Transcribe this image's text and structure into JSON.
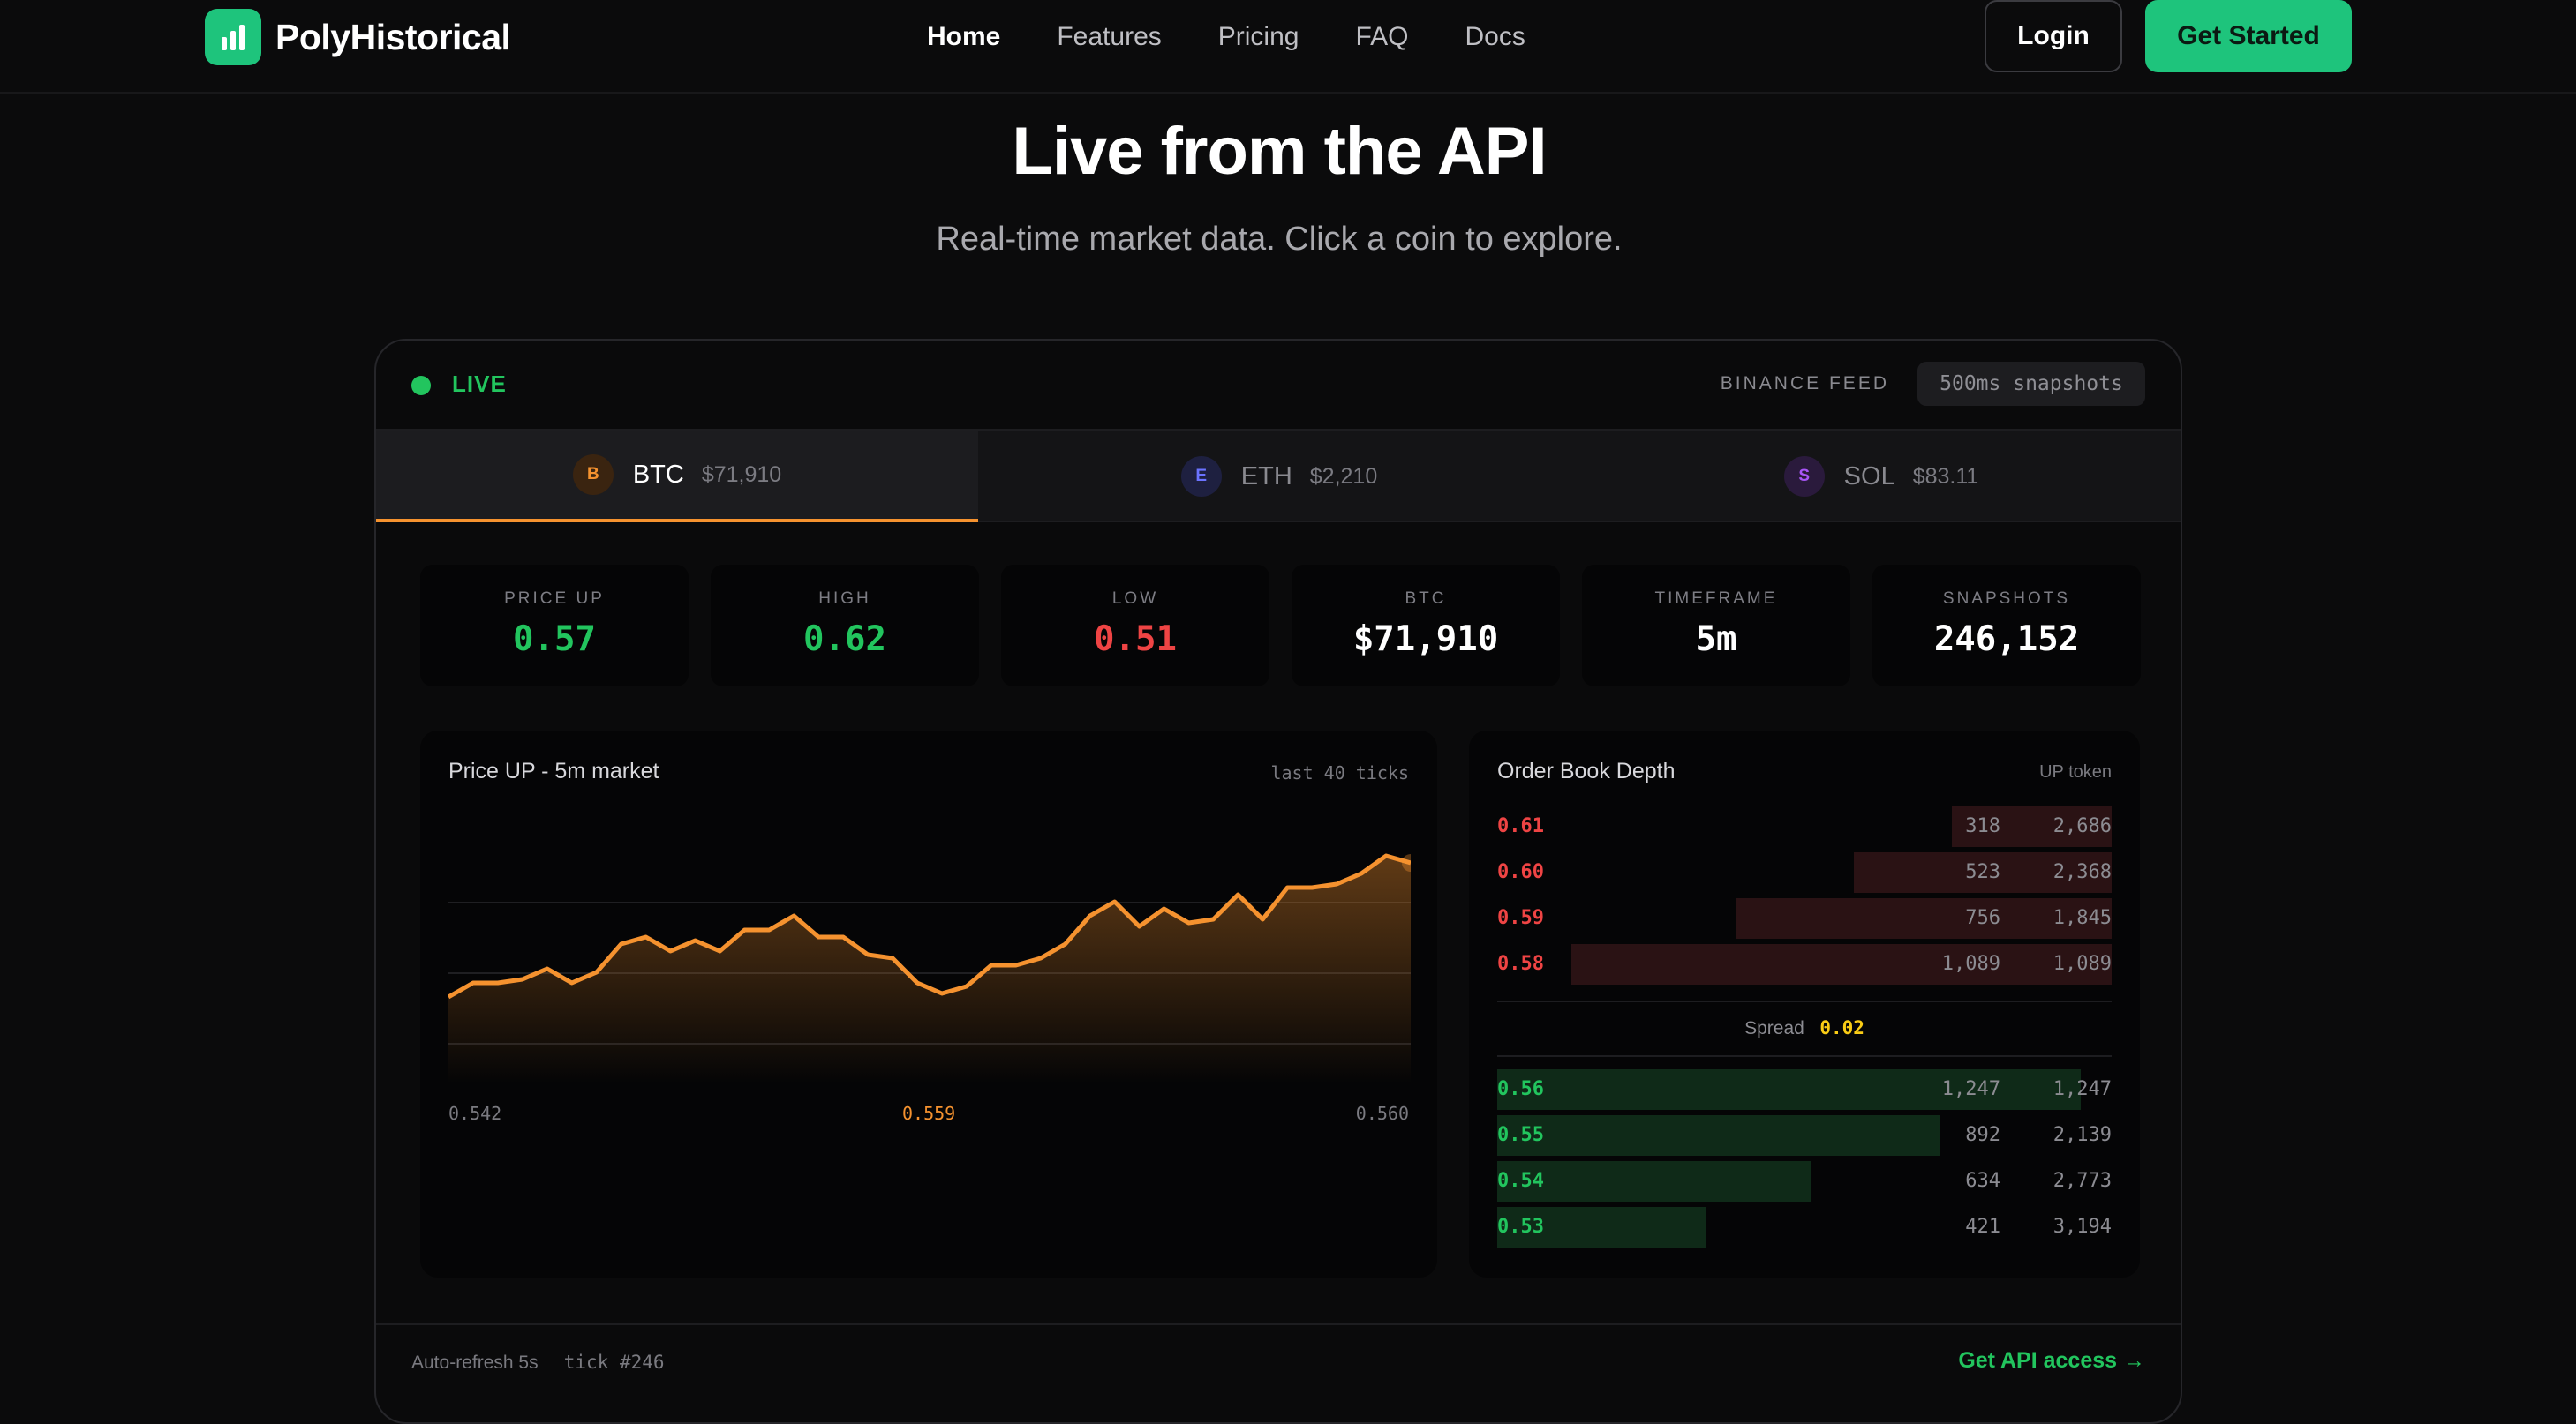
{
  "nav": {
    "brand": "PolyHistorical",
    "links": [
      {
        "label": "Home"
      },
      {
        "label": "Features"
      },
      {
        "label": "Pricing"
      },
      {
        "label": "FAQ"
      },
      {
        "label": "Docs"
      }
    ],
    "login_label": "Login",
    "cta_label": "Get Started"
  },
  "hero": {
    "title": "Live from the API",
    "subtitle": "Real-time market data. Click a coin to explore."
  },
  "card": {
    "live_label": "LIVE",
    "feed_label": "BINANCE FEED",
    "feed_pill": "500ms snapshots",
    "tabs": [
      {
        "badge": "B",
        "symbol": "BTC",
        "price": "$71,910",
        "color": "#f5922f"
      },
      {
        "badge": "E",
        "symbol": "ETH",
        "price": "$2,210",
        "color": "#6b73ff"
      },
      {
        "badge": "S",
        "symbol": "SOL",
        "price": "$83.11",
        "color": "#a855f7"
      }
    ],
    "stats": [
      {
        "label": "PRICE UP",
        "value": "0.57",
        "color": "#22c55e"
      },
      {
        "label": "HIGH",
        "value": "0.62",
        "color": "#22c55e"
      },
      {
        "label": "LOW",
        "value": "0.51",
        "color": "#ef4444"
      },
      {
        "label": "BTC",
        "value": "$71,910",
        "color": "#ffffff"
      },
      {
        "label": "TIMEFRAME",
        "value": "5m",
        "color": "#ffffff"
      },
      {
        "label": "SNAPSHOTS",
        "value": "246,152",
        "color": "#ffffff"
      }
    ],
    "chart_panel": {
      "title": "Price UP - 5m market",
      "note": "last 40 ticks",
      "axis_left": "0.542",
      "axis_mid": "0.559",
      "axis_right": "0.560"
    },
    "orderbook": {
      "title": "Order Book Depth",
      "note": "UP token",
      "spread_label": "Spread",
      "spread_value": "0.02",
      "asks": [
        {
          "price": "0.61",
          "size": "318",
          "total": "2,686",
          "depth": 0.26
        },
        {
          "price": "0.60",
          "size": "523",
          "total": "2,368",
          "depth": 0.42
        },
        {
          "price": "0.59",
          "size": "756",
          "total": "1,845",
          "depth": 0.61
        },
        {
          "price": "0.58",
          "size": "1,089",
          "total": "1,089",
          "depth": 0.88
        }
      ],
      "bids": [
        {
          "price": "0.56",
          "size": "1,247",
          "total": "1,247",
          "depth": 0.95
        },
        {
          "price": "0.55",
          "size": "892",
          "total": "2,139",
          "depth": 0.72
        },
        {
          "price": "0.54",
          "size": "634",
          "total": "2,773",
          "depth": 0.51
        },
        {
          "price": "0.53",
          "size": "421",
          "total": "3,194",
          "depth": 0.34
        }
      ]
    },
    "footer": {
      "refresh": "Auto-refresh 5s",
      "tick": "tick #246",
      "api_link": "Get API access →"
    }
  },
  "chart_data": {
    "type": "area",
    "values": [
      0.542,
      0.546,
      0.546,
      0.547,
      0.55,
      0.546,
      0.549,
      0.557,
      0.559,
      0.555,
      0.558,
      0.555,
      0.561,
      0.561,
      0.565,
      0.559,
      0.559,
      0.554,
      0.553,
      0.546,
      0.543,
      0.545,
      0.551,
      0.551,
      0.553,
      0.557,
      0.565,
      0.569,
      0.562,
      0.567,
      0.563,
      0.564,
      0.571,
      0.564,
      0.573,
      0.573,
      0.574,
      0.577,
      0.582,
      0.58
    ],
    "ylim": [
      0.525,
      0.585
    ],
    "color": "#f5922f"
  }
}
